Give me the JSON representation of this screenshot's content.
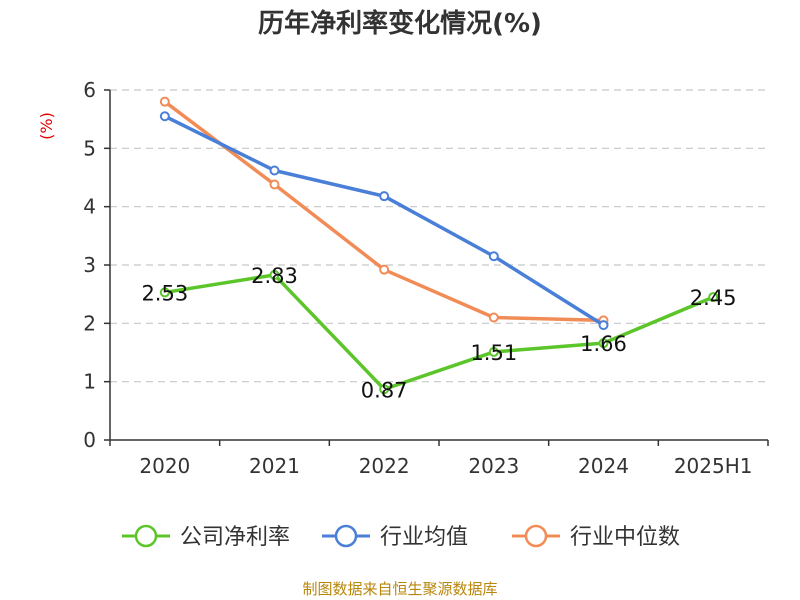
{
  "chart_data": {
    "type": "line",
    "title": "历年净利率变化情况(%)",
    "ylabel": "(%)",
    "categories": [
      "2020",
      "2021",
      "2022",
      "2023",
      "2024",
      "2025H1"
    ],
    "ylim": [
      0,
      6
    ],
    "yticks": [
      0,
      1,
      2,
      3,
      4,
      5,
      6
    ],
    "grid": true,
    "legend_position": "bottom",
    "series": [
      {
        "name": "公司净利率",
        "color": "#5cc52a",
        "values": [
          2.53,
          2.83,
          0.87,
          1.51,
          1.66,
          2.45
        ],
        "labels": [
          "2.53",
          "2.83",
          "0.87",
          "1.51",
          "1.66",
          "2.45"
        ]
      },
      {
        "name": "行业均值",
        "color": "#4a7fd8",
        "values": [
          5.55,
          4.62,
          4.18,
          3.15,
          1.97,
          null
        ]
      },
      {
        "name": "行业中位数",
        "color": "#f28c57",
        "values": [
          5.8,
          4.38,
          2.92,
          2.1,
          2.05,
          null
        ]
      }
    ],
    "source": "制图数据来自恒生聚源数据库"
  }
}
